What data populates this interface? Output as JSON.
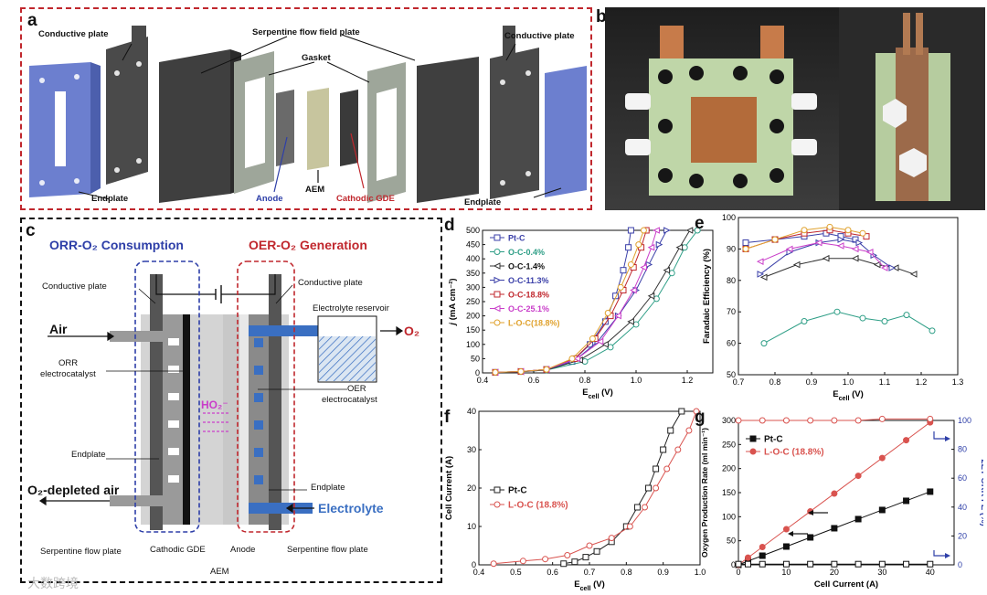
{
  "panel_a": {
    "label": "a",
    "callouts": {
      "conductive_left": "Conductive plate",
      "serpentine": "Serpentine flow field plate",
      "gasket": "Gasket",
      "conductive_right": "Conductive plate",
      "endplate_left": "Endplate",
      "anode": "Anode",
      "aem": "AEM",
      "cathodic_gde": "Cathodic GDE",
      "endplate_right": "Endplate"
    }
  },
  "panel_b": {
    "label": "b"
  },
  "panel_c": {
    "label": "c",
    "orr_title": "ORR-O₂ Consumption",
    "oer_title": "OER-O₂ Generation",
    "labels": {
      "conductive_left": "Conductive plate",
      "conductive_right": "Conductive plate",
      "electrolyte_reservoir": "Electrolyte reservoir",
      "o2": "O₂",
      "air": "Air",
      "orr_catalyst_1": "ORR",
      "orr_catalyst_2": "electrocatalyst",
      "ho2": "HO₂⁻",
      "oer_catalyst_1": "OER",
      "oer_catalyst_2": "electrocatalyst",
      "endplate_left": "Endplate",
      "endplate_right": "Endplate",
      "depleted_air": "O₂-depleted air",
      "electrolyte": "Electrolyte",
      "serpentine_left": "Serpentine flow plate",
      "cathodic_gde": "Cathodic GDE",
      "anode": "Anode",
      "serpentine_right": "Serpentine flow plate",
      "aem": "AEM"
    }
  },
  "watermark": "大数跨境",
  "colors": {
    "dash_red": "#c0272d",
    "dash_blue": "#2e3fa8",
    "o2_red": "#c0272d",
    "electrolyte_blue": "#3a6fc2"
  },
  "chart_data": [
    {
      "panel": "d",
      "type": "line",
      "xlabel": "E_cell (V)",
      "ylabel": "j (mA cm⁻²)",
      "xlim": [
        0.4,
        1.3
      ],
      "ylim": [
        0,
        500
      ],
      "xticks": [
        "0.4",
        "0.6",
        "0.8",
        "1.0",
        "1.2"
      ],
      "yticks": [
        "0",
        "50",
        "100",
        "150",
        "200",
        "250",
        "300",
        "350",
        "400",
        "450",
        "500"
      ],
      "legend_position": "top-left",
      "series": [
        {
          "name": "Pt-C",
          "color": "#3a3fa8",
          "marker": "square",
          "x": [
            0.45,
            0.55,
            0.65,
            0.75,
            0.82,
            0.88,
            0.92,
            0.95,
            0.97,
            0.98
          ],
          "y": [
            2,
            5,
            12,
            40,
            100,
            180,
            270,
            360,
            440,
            500
          ]
        },
        {
          "name": "O-C-0.4%",
          "color": "#2e9e86",
          "marker": "circle",
          "x": [
            0.45,
            0.55,
            0.65,
            0.8,
            0.9,
            1.0,
            1.08,
            1.14,
            1.19,
            1.24
          ],
          "y": [
            2,
            4,
            10,
            40,
            90,
            170,
            260,
            350,
            440,
            500
          ]
        },
        {
          "name": "O-C-1.4%",
          "color": "#333333",
          "marker": "triangle-left",
          "x": [
            0.45,
            0.55,
            0.65,
            0.78,
            0.88,
            0.98,
            1.06,
            1.12,
            1.17,
            1.21
          ],
          "y": [
            2,
            4,
            10,
            45,
            100,
            180,
            270,
            360,
            440,
            500
          ]
        },
        {
          "name": "O-C-11.3%",
          "color": "#3a3fa8",
          "marker": "triangle-right",
          "x": [
            0.45,
            0.55,
            0.65,
            0.77,
            0.85,
            0.93,
            1.0,
            1.05,
            1.09,
            1.12
          ],
          "y": [
            2,
            5,
            12,
            50,
            110,
            200,
            290,
            380,
            450,
            500
          ]
        },
        {
          "name": "O-C-18.8%",
          "color": "#c0272d",
          "marker": "square",
          "x": [
            0.45,
            0.55,
            0.65,
            0.76,
            0.84,
            0.9,
            0.95,
            0.99,
            1.02,
            1.04
          ],
          "y": [
            2,
            5,
            12,
            50,
            120,
            200,
            290,
            370,
            440,
            500
          ]
        },
        {
          "name": "O-C-25.1%",
          "color": "#c93ec9",
          "marker": "triangle-left",
          "x": [
            0.45,
            0.55,
            0.65,
            0.77,
            0.86,
            0.93,
            0.99,
            1.03,
            1.06,
            1.08
          ],
          "y": [
            2,
            5,
            12,
            50,
            110,
            200,
            290,
            370,
            440,
            500
          ]
        },
        {
          "name": "L-O-C(18.8%)",
          "color": "#e0a22e",
          "marker": "circle",
          "x": [
            0.45,
            0.55,
            0.65,
            0.75,
            0.83,
            0.89,
            0.94,
            0.98,
            1.01,
            1.03
          ],
          "y": [
            2,
            5,
            12,
            50,
            120,
            210,
            300,
            380,
            450,
            500
          ]
        }
      ]
    },
    {
      "panel": "e",
      "type": "line",
      "xlabel": "E_cell (V)",
      "ylabel": "Faradaic Efficiency (%)",
      "xlim": [
        0.7,
        1.3
      ],
      "ylim": [
        50,
        100
      ],
      "xticks": [
        "0.7",
        "0.8",
        "0.9",
        "1.0",
        "1.1",
        "1.2",
        "1.3"
      ],
      "yticks": [
        "50",
        "60",
        "70",
        "80",
        "90",
        "100"
      ],
      "series": [
        {
          "name": "Pt-C",
          "color": "#3a3fa8",
          "marker": "square",
          "x": [
            0.72,
            0.8,
            0.88,
            0.94,
            0.98,
            1.02
          ],
          "y": [
            92,
            93,
            94,
            95,
            94,
            93
          ]
        },
        {
          "name": "O-C-0.4%",
          "color": "#2e9e86",
          "marker": "circle",
          "x": [
            0.77,
            0.88,
            0.97,
            1.04,
            1.1,
            1.16,
            1.23
          ],
          "y": [
            60,
            67,
            70,
            68,
            67,
            69,
            64
          ]
        },
        {
          "name": "O-C-1.4%",
          "color": "#333333",
          "marker": "triangle-left",
          "x": [
            0.77,
            0.86,
            0.94,
            1.02,
            1.08,
            1.13,
            1.18
          ],
          "y": [
            81,
            85,
            87,
            87,
            85,
            84,
            82
          ]
        },
        {
          "name": "O-C-11.3%",
          "color": "#3a3fa8",
          "marker": "triangle-right",
          "x": [
            0.76,
            0.84,
            0.92,
            0.98,
            1.03,
            1.07,
            1.12
          ],
          "y": [
            82,
            89,
            92,
            93,
            92,
            88,
            84
          ]
        },
        {
          "name": "O-C-18.8%",
          "color": "#c0272d",
          "marker": "square",
          "x": [
            0.72,
            0.8,
            0.88,
            0.95,
            1.0,
            1.05
          ],
          "y": [
            90,
            93,
            95,
            96,
            95,
            94
          ]
        },
        {
          "name": "O-C-25.1%",
          "color": "#c93ec9",
          "marker": "triangle-left",
          "x": [
            0.76,
            0.84,
            0.92,
            0.98,
            1.02,
            1.06,
            1.1
          ],
          "y": [
            86,
            90,
            92,
            91,
            90,
            89,
            84
          ]
        },
        {
          "name": "L-O-C(18.8%)",
          "color": "#e0a22e",
          "marker": "circle",
          "x": [
            0.72,
            0.8,
            0.88,
            0.95,
            1.0,
            1.04
          ],
          "y": [
            90,
            93,
            96,
            97,
            96,
            95
          ]
        }
      ]
    },
    {
      "panel": "f",
      "type": "line",
      "xlabel": "E_cell (V)",
      "ylabel": "Cell Current (A)",
      "xlim": [
        0.4,
        1.0
      ],
      "ylim": [
        0,
        40
      ],
      "xticks": [
        "0.4",
        "0.5",
        "0.6",
        "0.7",
        "0.8",
        "0.9",
        "1.0"
      ],
      "yticks": [
        "0",
        "10",
        "20",
        "30",
        "40"
      ],
      "legend_position": "center-left",
      "series": [
        {
          "name": "Pt-C",
          "color": "#222222",
          "marker": "square",
          "x": [
            0.63,
            0.66,
            0.69,
            0.72,
            0.76,
            0.8,
            0.83,
            0.86,
            0.88,
            0.9,
            0.92,
            0.95
          ],
          "y": [
            0.3,
            0.8,
            2,
            3.5,
            6,
            10,
            15,
            20,
            25,
            30,
            35,
            40
          ]
        },
        {
          "name": "L-O-C (18.8%)",
          "color": "#d9534f",
          "marker": "circle",
          "x": [
            0.44,
            0.52,
            0.58,
            0.64,
            0.7,
            0.76,
            0.81,
            0.85,
            0.88,
            0.91,
            0.94,
            0.97,
            0.99
          ],
          "y": [
            0.3,
            1,
            1.5,
            2.5,
            5,
            7,
            10,
            15,
            20,
            25,
            30,
            35,
            40
          ]
        }
      ]
    },
    {
      "panel": "g",
      "type": "line",
      "xlabel": "Cell Current (A)",
      "ylabel": "Oxygen Production Rate (ml min⁻¹)",
      "y2label": "2ET-ORR FE (%)",
      "xlim": [
        0,
        45
      ],
      "ylim": [
        0,
        300
      ],
      "y2lim": [
        0,
        100
      ],
      "xticks": [
        "0",
        "10",
        "20",
        "30",
        "40"
      ],
      "yticks": [
        "0",
        "50",
        "100",
        "150",
        "200",
        "250",
        "300"
      ],
      "y2ticks": [
        "0",
        "20",
        "40",
        "60",
        "80",
        "100"
      ],
      "legend_position": "top-left",
      "series": [
        {
          "name": "Pt-C",
          "color": "#111111",
          "marker": "square-filled",
          "axis": "left",
          "x": [
            0,
            2,
            5,
            10,
            15,
            20,
            25,
            30,
            35,
            40
          ],
          "y": [
            0,
            8,
            19,
            38,
            57,
            76,
            95,
            114,
            133,
            152
          ]
        },
        {
          "name": "L-O-C (18.8%)",
          "color": "#d9534f",
          "marker": "circle-filled",
          "axis": "left",
          "x": [
            0,
            2,
            5,
            10,
            15,
            20,
            25,
            30,
            35,
            40
          ],
          "y": [
            0,
            15,
            37,
            74,
            111,
            148,
            185,
            222,
            259,
            296
          ]
        },
        {
          "name": "Pt-C FE",
          "color": "#111111",
          "marker": "square",
          "axis": "right",
          "x": [
            0,
            2,
            5,
            10,
            15,
            20,
            25,
            30,
            35,
            40
          ],
          "y": [
            0.5,
            0.5,
            0.5,
            0.5,
            0.5,
            0.5,
            0.5,
            0.5,
            0.5,
            0.5
          ]
        },
        {
          "name": "L-O-C FE",
          "color": "#d9534f",
          "marker": "circle",
          "axis": "right",
          "x": [
            0,
            5,
            10,
            15,
            20,
            25,
            30,
            40
          ],
          "y": [
            100,
            100,
            100,
            100,
            100,
            100,
            101,
            101
          ]
        }
      ]
    }
  ]
}
